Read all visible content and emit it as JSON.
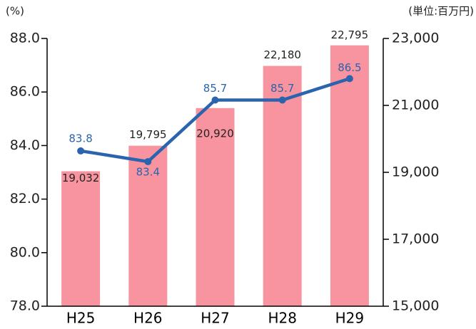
{
  "chart_data": {
    "type": "bar",
    "y_label": "(%)",
    "y2_label": "(単位:百万円)",
    "categories": [
      "H25",
      "H26",
      "H27",
      "H28",
      "H29"
    ],
    "series": [
      {
        "type": "bar",
        "axis": "y2",
        "color": "#f7949f",
        "values": [
          19032,
          19795,
          20920,
          22180,
          22795
        ],
        "value_labels": [
          "19,032",
          "19,795",
          "20,920",
          "22,180",
          "22,795"
        ]
      },
      {
        "type": "line",
        "color": "#2a64ae",
        "values": [
          83.8,
          83.4,
          85.7,
          85.7,
          86.5
        ]
      }
    ],
    "ylim": [
      78,
      88
    ],
    "yticks": [
      {
        "value": 78,
        "label": "78.0"
      },
      {
        "value": 80,
        "label": "80.0"
      },
      {
        "value": 82,
        "label": "82.0"
      },
      {
        "value": 84,
        "label": "84.0"
      },
      {
        "value": 86,
        "label": "86.0"
      },
      {
        "value": 88,
        "label": "88.0"
      }
    ],
    "y2lim": [
      15000,
      23000
    ],
    "y2ticks": [
      {
        "value": 15000,
        "label": "15,000"
      },
      {
        "value": 17000,
        "label": "17,000"
      },
      {
        "value": 19000,
        "label": "19,000"
      },
      {
        "value": 21000,
        "label": "21,000"
      },
      {
        "value": 23000,
        "label": "23,000"
      }
    ],
    "grid": false
  }
}
